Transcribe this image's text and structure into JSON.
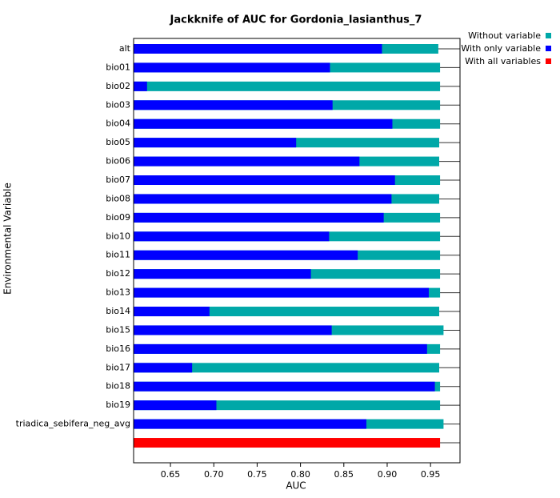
{
  "chart_data": {
    "type": "bar",
    "orientation": "horizontal",
    "title": "Jackknife of AUC for Gordonia_lasianthus_7",
    "x_label": "AUC",
    "y_label": "Environmental Variable",
    "categories": [
      "alt",
      "bio01",
      "bio02",
      "bio03",
      "bio04",
      "bio05",
      "bio06",
      "bio07",
      "bio08",
      "bio09",
      "bio10",
      "bio11",
      "bio12",
      "bio13",
      "bio14",
      "bio15",
      "bio16",
      "bio17",
      "bio18",
      "bio19",
      "triadica_sebifera_neg_avg",
      null
    ],
    "series": [
      {
        "name": "Without variable",
        "color": "#00a8a8",
        "values": [
          0.959,
          0.961,
          0.961,
          0.961,
          0.961,
          0.96,
          0.96,
          0.961,
          0.96,
          0.961,
          0.961,
          0.961,
          0.961,
          0.961,
          0.96,
          0.965,
          0.961,
          0.96,
          0.961,
          0.961,
          0.965,
          null
        ]
      },
      {
        "name": "With only variable",
        "color": "#0000ff",
        "values": [
          0.894,
          0.834,
          0.623,
          0.837,
          0.906,
          0.795,
          0.868,
          0.909,
          0.905,
          0.896,
          0.833,
          0.866,
          0.812,
          0.948,
          0.695,
          0.836,
          0.946,
          0.675,
          0.955,
          0.703,
          0.876,
          null
        ]
      },
      {
        "name": "With all variables",
        "color": "#ff0000",
        "values": [
          null,
          null,
          null,
          null,
          null,
          null,
          null,
          null,
          null,
          null,
          null,
          null,
          null,
          null,
          null,
          null,
          null,
          null,
          null,
          null,
          null,
          0.961
        ]
      }
    ],
    "xlim": [
      0.6075,
      0.984
    ],
    "xticks": [
      {
        "value": 0.65,
        "label": "0.65"
      },
      {
        "value": 0.7,
        "label": "0.70"
      },
      {
        "value": 0.75,
        "label": "0.75"
      },
      {
        "value": 0.8,
        "label": "0.80"
      },
      {
        "value": 0.85,
        "label": "0.85"
      },
      {
        "value": 0.9,
        "label": "0.90"
      },
      {
        "value": 0.95,
        "label": "0.95"
      }
    ],
    "grid": true,
    "legend": "top-right"
  }
}
